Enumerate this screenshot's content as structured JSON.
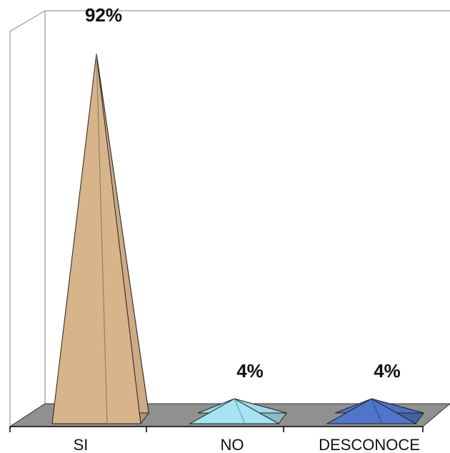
{
  "chart_data": {
    "type": "bar",
    "categories": [
      "SI",
      "NO",
      "DESCONOCE"
    ],
    "values": [
      92,
      4,
      4
    ],
    "value_labels": [
      "92%",
      "4%",
      "4%"
    ],
    "ylim": [
      0,
      100
    ],
    "grid": false,
    "colors": [
      "#D8B48B",
      "#A6E4F1",
      "#4F76C9"
    ]
  }
}
